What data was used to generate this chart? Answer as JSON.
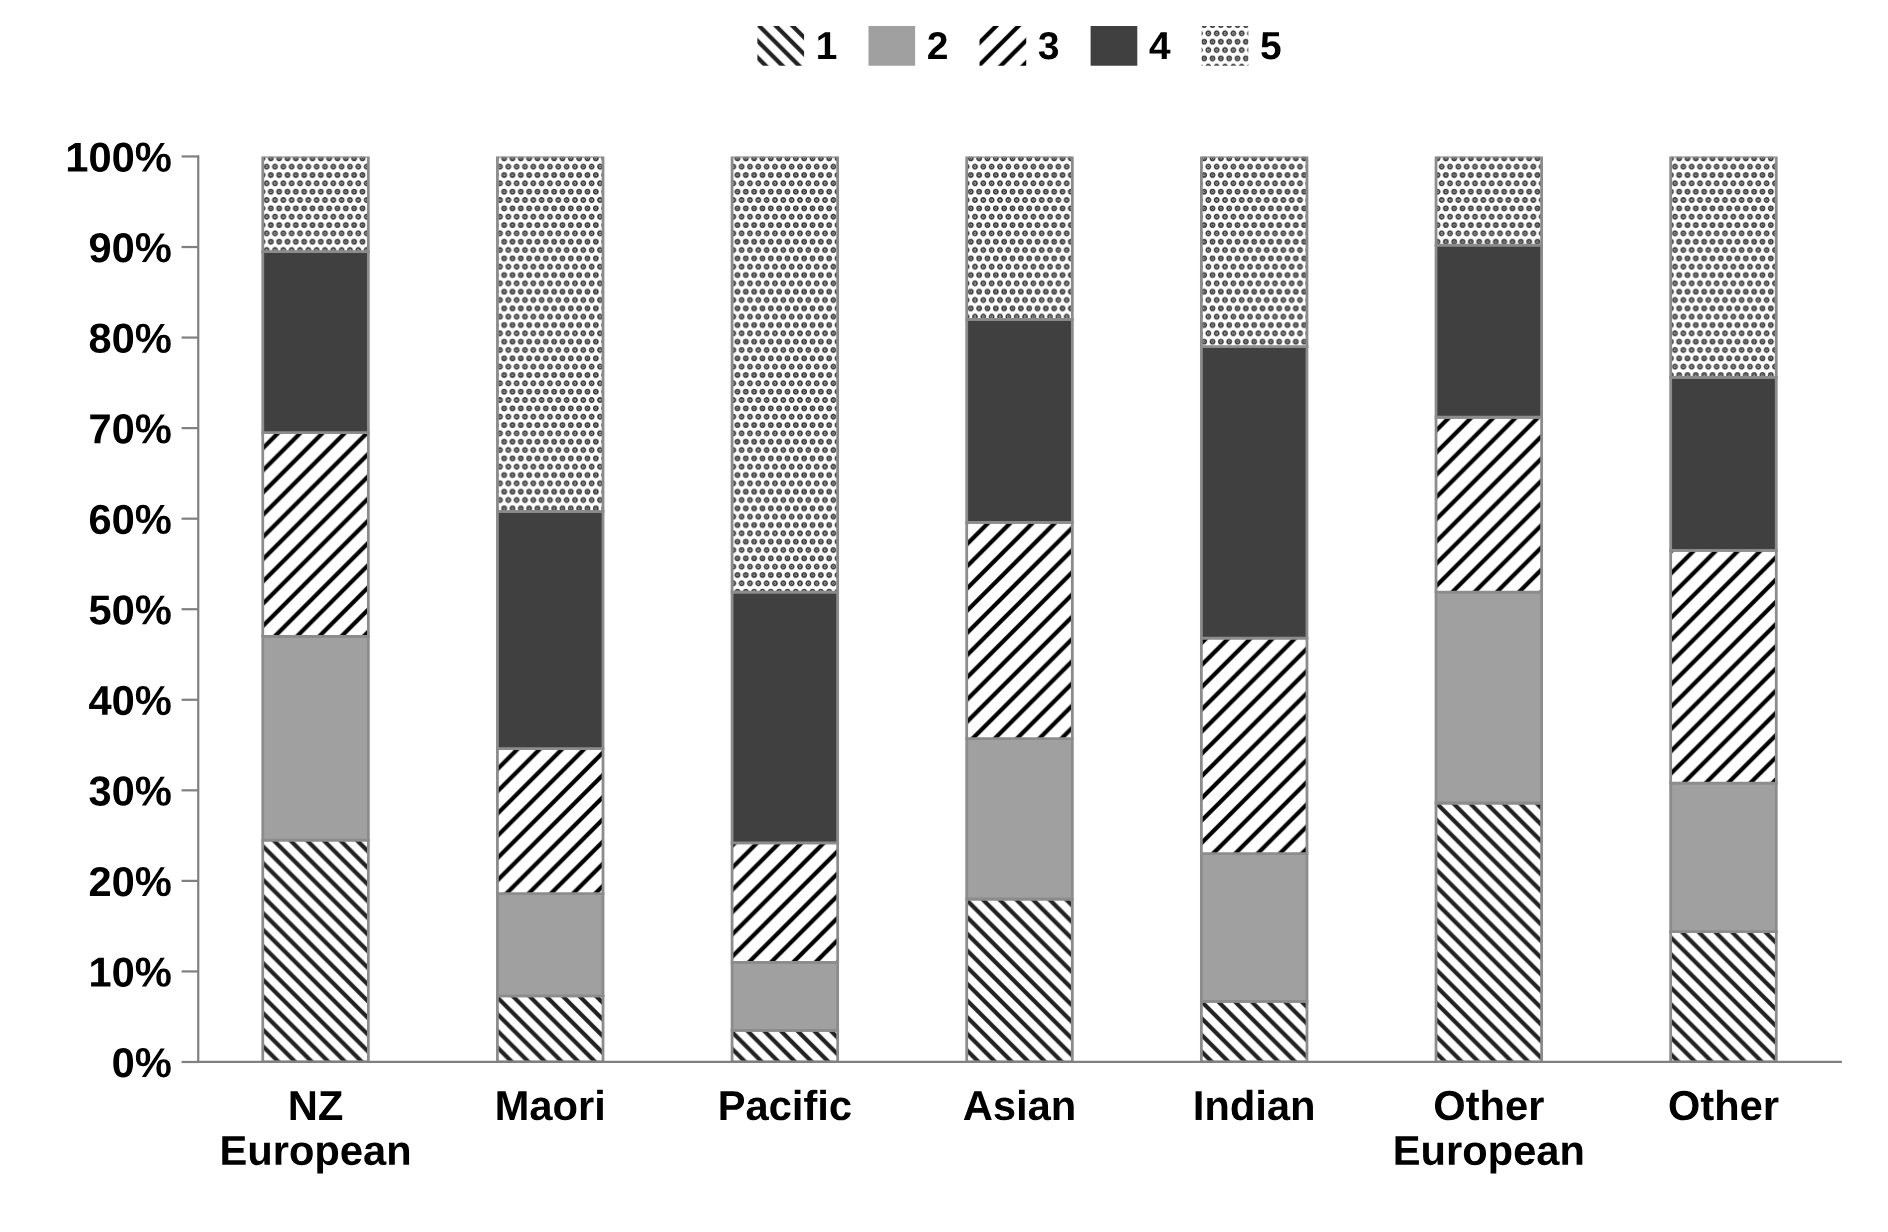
{
  "chart_data": {
    "type": "bar",
    "stacked": true,
    "categories": [
      "NZ\nEuropean",
      "Maori",
      "Pacific",
      "Asian",
      "Indian",
      "Other\nEuropean",
      "Other"
    ],
    "series": [
      {
        "name": "1",
        "color": "#ffffff",
        "values": [
          24.5,
          7.3,
          3.5,
          18,
          6.7,
          28.6,
          14.4
        ]
      },
      {
        "name": "2",
        "color": "#a0a0a0",
        "values": [
          22.5,
          11.3,
          7.5,
          17.7,
          16.3,
          23.3,
          16.4
        ]
      },
      {
        "name": "3",
        "color": "#ffffff",
        "values": [
          22.5,
          16,
          13.2,
          23.9,
          23.8,
          19.3,
          25.7
        ]
      },
      {
        "name": "4",
        "color": "#404040",
        "values": [
          20,
          26.2,
          27.7,
          22.4,
          32.2,
          19,
          19.1
        ]
      },
      {
        "name": "5",
        "color": "#ffffff",
        "values": [
          10.5,
          39.2,
          48.1,
          18,
          21,
          9.8,
          24.4
        ]
      }
    ],
    "ylim": [
      0,
      100
    ],
    "yticks": [
      {
        "value": 0,
        "label": "0%"
      },
      {
        "value": 10,
        "label": "10%"
      },
      {
        "value": 20,
        "label": "20%"
      },
      {
        "value": 30,
        "label": "30%"
      },
      {
        "value": 40,
        "label": "40%"
      },
      {
        "value": 50,
        "label": "50%"
      },
      {
        "value": 60,
        "label": "60%"
      },
      {
        "value": 70,
        "label": "70%"
      },
      {
        "value": 80,
        "label": "80%"
      },
      {
        "value": 90,
        "label": "90%"
      },
      {
        "value": 100,
        "label": "100%"
      }
    ],
    "grid": false,
    "legend": "top"
  }
}
